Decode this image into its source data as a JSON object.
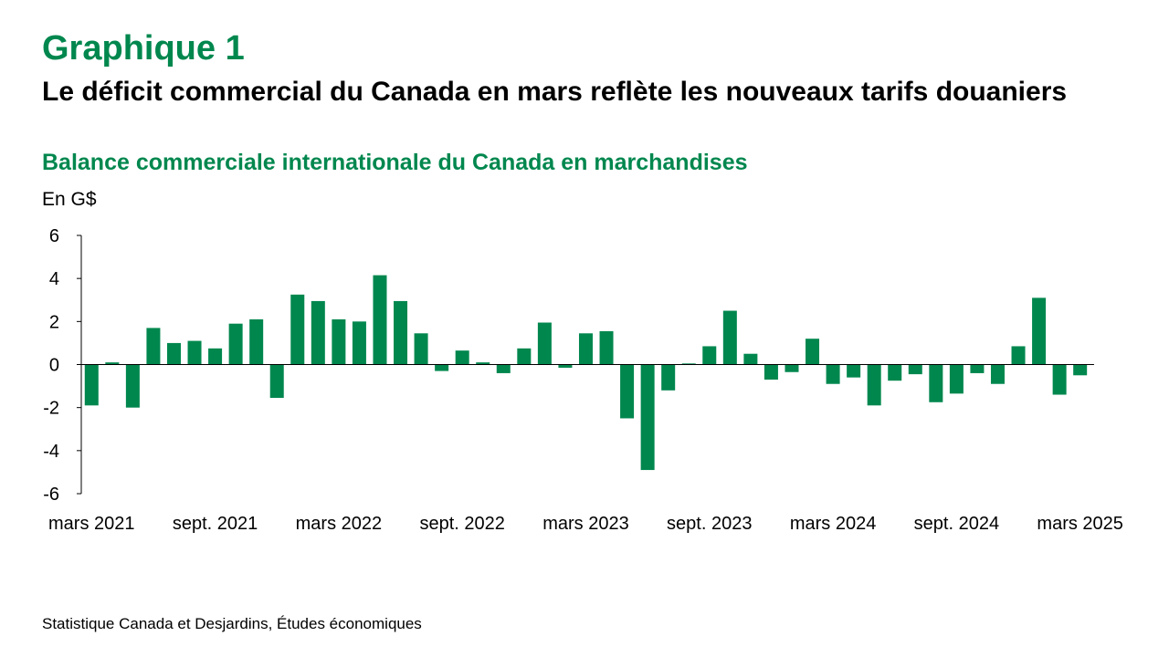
{
  "header": {
    "kicker": "Graphique 1",
    "title": "Le déficit commercial du Canada en mars reflète les nouveaux tarifs douaniers",
    "subtitle": "Balance commerciale internationale du Canada en marchandises"
  },
  "footer": {
    "source": "Statistique Canada et Desjardins, Études économiques"
  },
  "colors": {
    "accent": "#00874e",
    "bar": "#00874e",
    "axis": "#000000"
  },
  "chart_data": {
    "type": "bar",
    "title": "Balance commerciale internationale du Canada en marchandises",
    "ylabel": "En G$",
    "ylim": [
      -6,
      6
    ],
    "yticks": [
      6,
      4,
      2,
      0,
      -2,
      -4,
      -6
    ],
    "ytick_labels": [
      "6",
      "4",
      "2",
      "0",
      "-2",
      "-4",
      "-6"
    ],
    "xtick_labels": [
      {
        "index": 0,
        "label": "mars 2021"
      },
      {
        "index": 6,
        "label": "sept. 2021"
      },
      {
        "index": 12,
        "label": "mars 2022"
      },
      {
        "index": 18,
        "label": "sept. 2022"
      },
      {
        "index": 24,
        "label": "mars 2023"
      },
      {
        "index": 30,
        "label": "sept. 2023"
      },
      {
        "index": 36,
        "label": "mars 2024"
      },
      {
        "index": 42,
        "label": "sept. 2024"
      },
      {
        "index": 48,
        "label": "mars 2025"
      }
    ],
    "categories": [
      "2021-03",
      "2021-04",
      "2021-05",
      "2021-06",
      "2021-07",
      "2021-08",
      "2021-09",
      "2021-10",
      "2021-11",
      "2021-12",
      "2022-01",
      "2022-02",
      "2022-03",
      "2022-04",
      "2022-05",
      "2022-06",
      "2022-07",
      "2022-08",
      "2022-09",
      "2022-10",
      "2022-11",
      "2022-12",
      "2023-01",
      "2023-02",
      "2023-03",
      "2023-04",
      "2023-05",
      "2023-06",
      "2023-07",
      "2023-08",
      "2023-09",
      "2023-10",
      "2023-11",
      "2023-12",
      "2024-01",
      "2024-02",
      "2024-03",
      "2024-04",
      "2024-05",
      "2024-06",
      "2024-07",
      "2024-08",
      "2024-09",
      "2024-10",
      "2024-11",
      "2024-12",
      "2025-01",
      "2025-02",
      "2025-03"
    ],
    "values": [
      -1.9,
      0.1,
      -2.0,
      1.7,
      1.0,
      1.1,
      0.75,
      1.9,
      2.1,
      -1.55,
      3.25,
      2.95,
      2.1,
      2.0,
      4.15,
      2.95,
      1.45,
      -0.3,
      0.65,
      0.1,
      -0.4,
      0.75,
      1.95,
      -0.15,
      1.45,
      1.55,
      -2.5,
      -4.9,
      -1.2,
      0.05,
      0.85,
      2.5,
      0.5,
      -0.7,
      -0.35,
      1.2,
      -0.9,
      -0.6,
      -1.9,
      -0.75,
      -0.45,
      -1.75,
      -1.35,
      -0.4,
      -0.9,
      0.85,
      3.1,
      -1.4,
      -0.5
    ],
    "grid": false
  }
}
